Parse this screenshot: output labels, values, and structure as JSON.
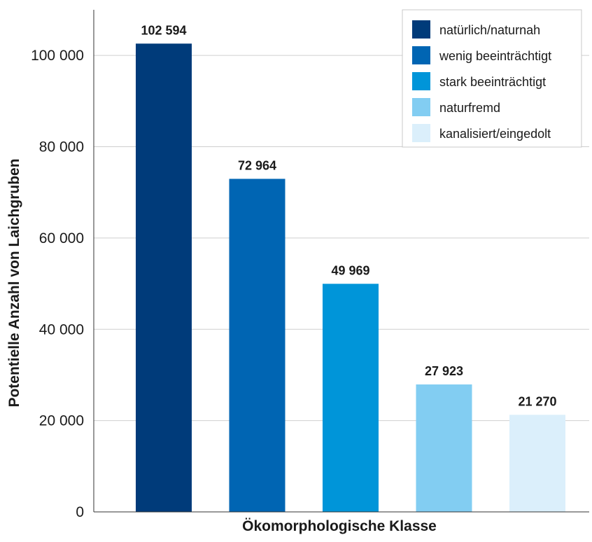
{
  "chart_data": {
    "type": "bar",
    "title": "",
    "xlabel": "Ökomorphologische Klasse",
    "ylabel": "Potentielle Anzahl von Laichgruben",
    "ylim": [
      0,
      110000
    ],
    "yticks": [
      0,
      20000,
      40000,
      60000,
      80000,
      100000
    ],
    "ytick_labels": [
      "0",
      "20 000",
      "40 000",
      "60 000",
      "80 000",
      "100 000"
    ],
    "grid": true,
    "legend_position": "top-right",
    "categories": [
      "natürlich/naturnah",
      "wenig beeinträchtigt",
      "stark beeinträchtigt",
      "naturfremd",
      "kanalisiert/eingedolt"
    ],
    "values": [
      102594,
      72964,
      49969,
      27923,
      21270
    ],
    "value_labels": [
      "102 594",
      "72 964",
      "49 969",
      "27 923",
      "21 270"
    ],
    "colors": [
      "#003b7a",
      "#0065b3",
      "#0095d9",
      "#82cdf2",
      "#dbeffb"
    ]
  }
}
